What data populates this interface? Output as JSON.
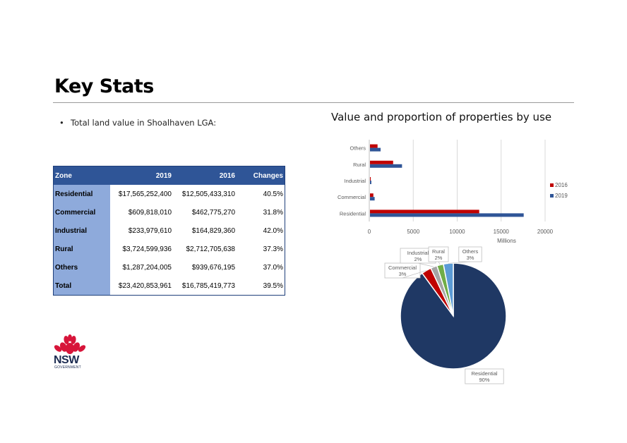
{
  "page": {
    "title": "Key Stats",
    "bullet": "Total land value in Shoalhaven LGA:"
  },
  "table": {
    "headers": [
      "Zone",
      "2019",
      "2016",
      "Changes"
    ],
    "rows": [
      [
        "Residential",
        "$17,565,252,400",
        "$12,505,433,310",
        "40.5%"
      ],
      [
        "Commercial",
        "$609,818,010",
        "$462,775,270",
        "31.8%"
      ],
      [
        "Industrial",
        "$233,979,610",
        "$164,829,360",
        "42.0%"
      ],
      [
        "Rural",
        "$3,724,599,936",
        "$2,712,705,638",
        "37.3%"
      ],
      [
        "Others",
        "$1,287,204,005",
        "$939,676,195",
        "37.0%"
      ],
      [
        "Total",
        "$23,420,853,961",
        "$16,785,419,773",
        "39.5%"
      ]
    ]
  },
  "logo": {
    "text": "NSW",
    "subtext": "GOVERNMENT"
  },
  "colors": {
    "header_blue": "#2f5597",
    "zone_blue": "#8eaadb",
    "red": "#c00000",
    "blue": "#2f5597",
    "navy": "#1f3864"
  },
  "chart_data": [
    {
      "type": "bar",
      "orientation": "horizontal",
      "title": "Value and proportion of properties by use",
      "categories": [
        "Residential",
        "Commercial",
        "Industrial",
        "Rural",
        "Others"
      ],
      "series": [
        {
          "name": "2016",
          "color": "#c00000",
          "values": [
            12505.43,
            462.78,
            164.83,
            2712.71,
            939.68
          ]
        },
        {
          "name": "2019",
          "color": "#2f5597",
          "values": [
            17565.25,
            609.82,
            233.98,
            3724.6,
            1287.2
          ]
        }
      ],
      "xlabel": "Millions",
      "xlim": [
        0,
        20000
      ],
      "xticks": [
        "0",
        "5000",
        "10000",
        "15000",
        "20000"
      ],
      "grid": true,
      "legend": "right"
    },
    {
      "type": "pie",
      "slices": [
        {
          "label": "Residential",
          "pct_label": "90%",
          "value": 90,
          "color": "#1f3864"
        },
        {
          "label": "Commercial",
          "pct_label": "3%",
          "value": 3,
          "color": "#c00000"
        },
        {
          "label": "Industrial",
          "pct_label": "2%",
          "value": 2,
          "color": "#a5a5a5"
        },
        {
          "label": "Rural",
          "pct_label": "2%",
          "value": 2,
          "color": "#70ad47"
        },
        {
          "label": "Others",
          "pct_label": "3%",
          "value": 3,
          "color": "#5b9bd5"
        }
      ]
    }
  ]
}
